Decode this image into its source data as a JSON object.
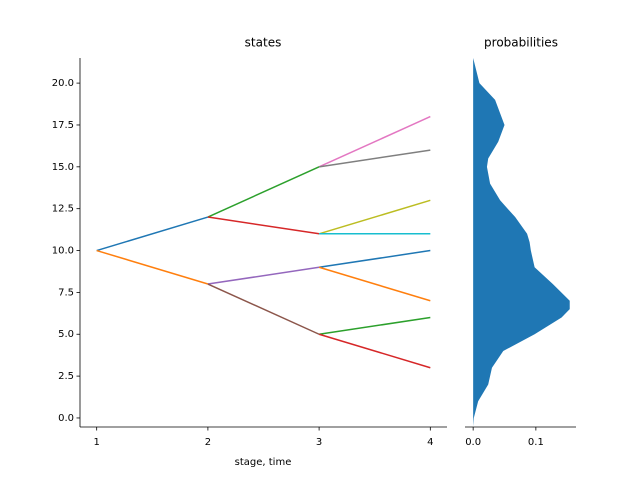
{
  "chart_data": [
    {
      "type": "line",
      "title": "states",
      "x_label": "stage, time",
      "xlim": [
        0.85,
        4.15
      ],
      "xticks": [
        1,
        2,
        3,
        4
      ],
      "ylim": [
        -0.54,
        21.5
      ],
      "yticks": [
        {
          "value": 0,
          "label": "0.0"
        },
        2.5,
        {
          "value": 5,
          "label": "5.0"
        },
        7.5,
        {
          "value": 10,
          "label": "10.0"
        },
        12.5,
        {
          "value": 15,
          "label": "15.0"
        },
        17.5,
        {
          "value": 20,
          "label": "20.0"
        }
      ],
      "series": [
        {
          "color": "#1f77b4",
          "x": [
            1,
            2
          ],
          "values": [
            10,
            12
          ]
        },
        {
          "color": "#ff7f0e",
          "x": [
            1,
            2
          ],
          "values": [
            10,
            8
          ]
        },
        {
          "color": "#2ca02c",
          "x": [
            2,
            3
          ],
          "values": [
            12,
            15
          ]
        },
        {
          "color": "#d62728",
          "x": [
            2,
            3
          ],
          "values": [
            12,
            11
          ]
        },
        {
          "color": "#9467bd",
          "x": [
            2,
            3
          ],
          "values": [
            8,
            9
          ]
        },
        {
          "color": "#8c564b",
          "x": [
            2,
            3
          ],
          "values": [
            8,
            5
          ]
        },
        {
          "color": "#e377c2",
          "x": [
            3,
            4
          ],
          "values": [
            15,
            18
          ]
        },
        {
          "color": "#7f7f7f",
          "x": [
            3,
            4
          ],
          "values": [
            15,
            16
          ]
        },
        {
          "color": "#bcbd22",
          "x": [
            3,
            4
          ],
          "values": [
            11,
            13
          ]
        },
        {
          "color": "#17becf",
          "x": [
            3,
            4
          ],
          "values": [
            11,
            11
          ]
        },
        {
          "color": "#1f77b4",
          "x": [
            3,
            4
          ],
          "values": [
            9,
            10
          ]
        },
        {
          "color": "#ff7f0e",
          "x": [
            3,
            4
          ],
          "values": [
            9,
            7
          ]
        },
        {
          "color": "#2ca02c",
          "x": [
            3,
            4
          ],
          "values": [
            5,
            6
          ]
        },
        {
          "color": "#d62728",
          "x": [
            3,
            4
          ],
          "values": [
            5,
            3
          ]
        }
      ]
    },
    {
      "type": "area",
      "title": "probabilities",
      "color": "#1f77b4",
      "xlim": [
        -0.013,
        0.164
      ],
      "xticks": [
        {
          "value": 0,
          "label": "0.0"
        },
        0.1
      ],
      "ylim": [
        -0.54,
        21.5
      ],
      "y": [
        -0.5,
        0,
        1,
        2,
        3,
        4,
        5,
        6,
        6.5,
        7,
        8,
        9,
        10,
        10.5,
        11,
        12,
        13,
        14,
        15,
        15.5,
        16.5,
        17.5,
        19,
        20,
        21.5
      ],
      "values": [
        0,
        0.001,
        0.008,
        0.024,
        0.03,
        0.048,
        0.098,
        0.141,
        0.154,
        0.154,
        0.127,
        0.098,
        0.092,
        0.09,
        0.086,
        0.067,
        0.043,
        0.027,
        0.022,
        0.024,
        0.04,
        0.05,
        0.035,
        0.01,
        0
      ]
    }
  ]
}
